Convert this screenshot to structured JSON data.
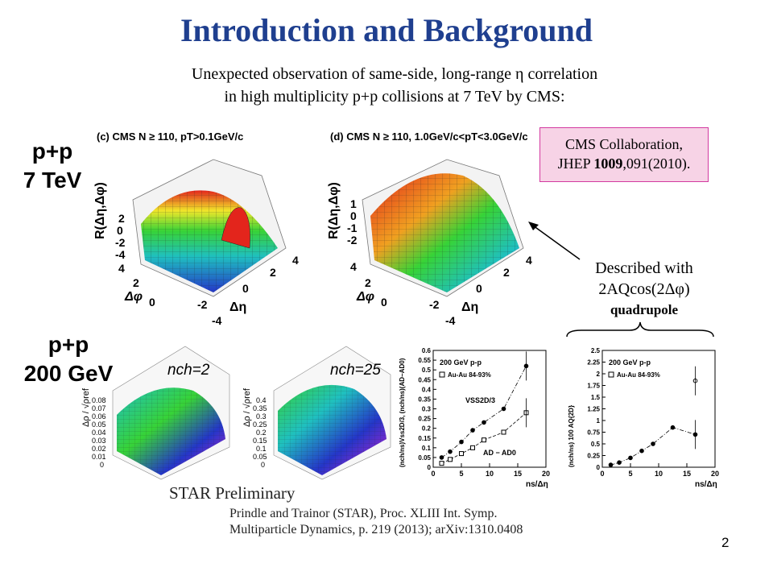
{
  "title": "Introduction and Background",
  "subtitle": {
    "line1": "Unexpected observation of same-side, long-range η correlation",
    "line2": "in high multiplicity p+p collisions at 7 TeV by CMS:"
  },
  "systems": {
    "top": {
      "line1": "p+p",
      "line2": "7 TeV"
    },
    "bottom": {
      "line1": "p+p",
      "line2": "200 GeV"
    }
  },
  "cms_plots": {
    "left_label": "(c) CMS N ≥ 110, pT>0.1GeV/c",
    "right_label": "(d) CMS N ≥ 110, 1.0GeV/c<pT<3.0GeV/c",
    "zaxis": "R(Δη,Δφ)",
    "xaxis": "Δη",
    "yaxis": "Δφ"
  },
  "reference_box": {
    "line1": "CMS Collaboration,",
    "journal": "JHEP",
    "volume": "1009",
    "rest": ",091(2010)."
  },
  "described": {
    "line1": "Described with",
    "line2": "2AQcos(2Δφ)",
    "line3": "quadrupole"
  },
  "star_plots": {
    "left_nch": "nch=2",
    "right_nch": "nch=25",
    "zaxis": "Δρ / √ρref",
    "left_zticks": [
      "0.08",
      "0.07",
      "0.06",
      "0.05",
      "0.04",
      "0.03",
      "0.02",
      "0.01",
      "0"
    ],
    "right_zticks": [
      "0.4",
      "0.35",
      "0.3",
      "0.25",
      "0.2",
      "0.15",
      "0.1",
      "0.05",
      "0"
    ]
  },
  "star_preliminary": "STAR Preliminary",
  "citation": {
    "line1": "Prindle and Trainor (STAR), Proc. XLIII Int. Symp.",
    "line2": "Multiparticle Dynamics, p. 219 (2013); arXiv:1310.0408"
  },
  "page_number": "2",
  "colors": {
    "title": "#1f3f8f",
    "box_fill": "#f7d3e6",
    "box_border": "#d33aa0"
  },
  "chart_data": [
    {
      "type": "scatter",
      "title": "200 GeV p-p",
      "xlabel": "ns/Δη",
      "ylabel": "(nch/ns)Vss2D/3, (nch/ns)(AD−AD0)",
      "xlim": [
        0,
        20
      ],
      "ylim": [
        0,
        0.6
      ],
      "xticks": [
        "0",
        "5",
        "10",
        "15",
        "20"
      ],
      "yticks": [
        "0",
        "0.05",
        "0.1",
        "0.15",
        "0.2",
        "0.25",
        "0.3",
        "0.35",
        "0.4",
        "0.45",
        "0.5",
        "0.55",
        "0.6"
      ],
      "legend": "Au-Au 84-93%",
      "annotations": [
        "VSS2D/3",
        "AD − AD0"
      ],
      "series": [
        {
          "name": "VSS2D/3",
          "x": [
            1.5,
            3,
            5,
            7,
            9,
            12.5,
            16.5
          ],
          "y": [
            0.05,
            0.08,
            0.13,
            0.19,
            0.23,
            0.3,
            0.52
          ]
        },
        {
          "name": "AD − AD0",
          "x": [
            1.5,
            3,
            5,
            7,
            9,
            12.5,
            16.5
          ],
          "y": [
            0.02,
            0.04,
            0.07,
            0.1,
            0.14,
            0.18,
            0.28
          ]
        }
      ]
    },
    {
      "type": "scatter",
      "title": "200 GeV p-p",
      "xlabel": "ns/Δη",
      "ylabel": "(nch/ns) 100 AQ{2D}",
      "xlim": [
        0,
        20
      ],
      "ylim": [
        0,
        2.5
      ],
      "xticks": [
        "0",
        "5",
        "10",
        "15",
        "20"
      ],
      "yticks": [
        "0",
        "0.25",
        "0.5",
        "0.75",
        "1",
        "1.25",
        "1.5",
        "1.75",
        "2",
        "2.25",
        "2.5"
      ],
      "legend": "Au-Au 84-93%",
      "series": [
        {
          "name": "",
          "x": [
            1.5,
            3,
            5,
            7,
            9,
            12.5,
            16.5
          ],
          "y": [
            0.05,
            0.1,
            0.2,
            0.35,
            0.5,
            0.85,
            0.7
          ]
        },
        {
          "name": "Au-Au 84-93%",
          "x": [
            16.5
          ],
          "y": [
            1.85
          ]
        }
      ]
    }
  ]
}
